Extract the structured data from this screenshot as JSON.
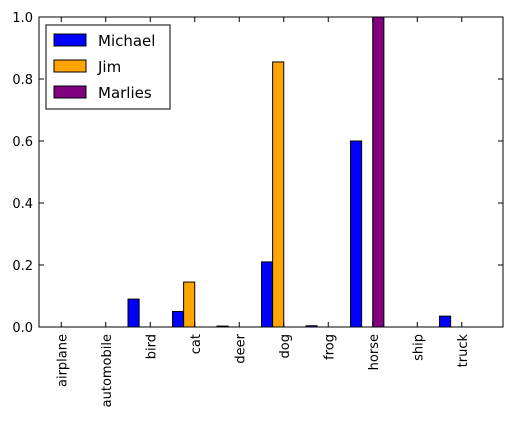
{
  "chart_data": {
    "type": "bar",
    "categories": [
      "airplane",
      "automobile",
      "bird",
      "cat",
      "deer",
      "dog",
      "frog",
      "horse",
      "ship",
      "truck"
    ],
    "series": [
      {
        "name": "Michael",
        "color": "#0000ff",
        "values": [
          0.0,
          0.0,
          0.09,
          0.05,
          0.003,
          0.21,
          0.004,
          0.6,
          0.0,
          0.035
        ]
      },
      {
        "name": "Jim",
        "color": "#ffa500",
        "values": [
          0.0,
          0.0,
          0.0,
          0.145,
          0.0,
          0.855,
          0.0,
          0.0,
          0.0,
          0.0
        ]
      },
      {
        "name": "Marlies",
        "color": "#800080",
        "values": [
          0.0,
          0.0,
          0.0,
          0.0,
          0.0,
          0.0,
          0.0,
          1.0,
          0.0,
          0.0
        ]
      }
    ],
    "ylim": [
      0,
      1.0
    ],
    "yticks": [
      0.0,
      0.2,
      0.4,
      0.6,
      0.8,
      1.0
    ],
    "ytick_labels": [
      "0.0",
      "0.2",
      "0.4",
      "0.6",
      "0.8",
      "1.0"
    ],
    "legend_position": "top-left",
    "grid": false,
    "title": "",
    "xlabel": "",
    "ylabel": ""
  }
}
